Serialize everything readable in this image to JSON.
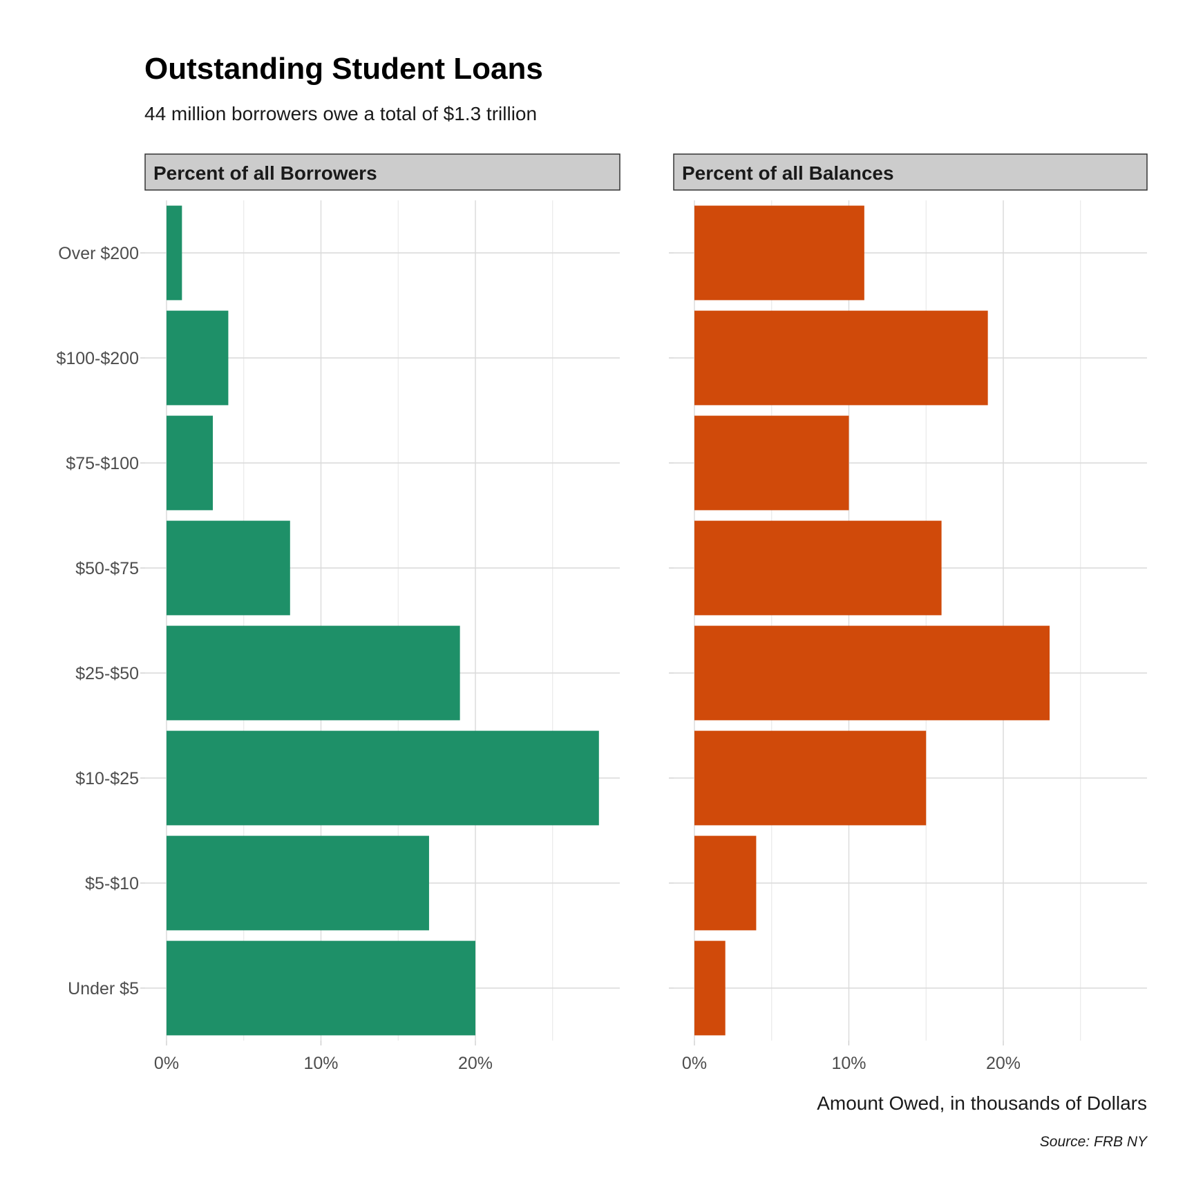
{
  "title": "Outstanding Student Loans",
  "subtitle": "44 million borrowers owe a total of $1.3 trillion",
  "caption": "Source: FRB NY",
  "chart_data": {
    "type": "bar",
    "orientation": "horizontal",
    "xlabel": "Amount Owed, in thousands of Dollars",
    "ylabel": "",
    "grid": true,
    "xlim": [
      0,
      29
    ],
    "x_ticks": [
      0,
      10,
      20
    ],
    "x_tick_labels": [
      "0%",
      "10%",
      "20%"
    ],
    "categories": [
      "Under $5",
      "$5-$10",
      "$10-$25",
      "$25-$50",
      "$50-$75",
      "$75-$100",
      "$100-$200",
      "Over $200"
    ],
    "series": [
      {
        "name": "Percent of all Borrowers",
        "color": "#1e9068",
        "values": [
          20,
          17,
          28,
          19,
          8,
          3,
          4,
          1
        ]
      },
      {
        "name": "Percent of all Balances",
        "color": "#d04a0a",
        "values": [
          2,
          4,
          15,
          23,
          16,
          10,
          19,
          11
        ]
      }
    ]
  }
}
